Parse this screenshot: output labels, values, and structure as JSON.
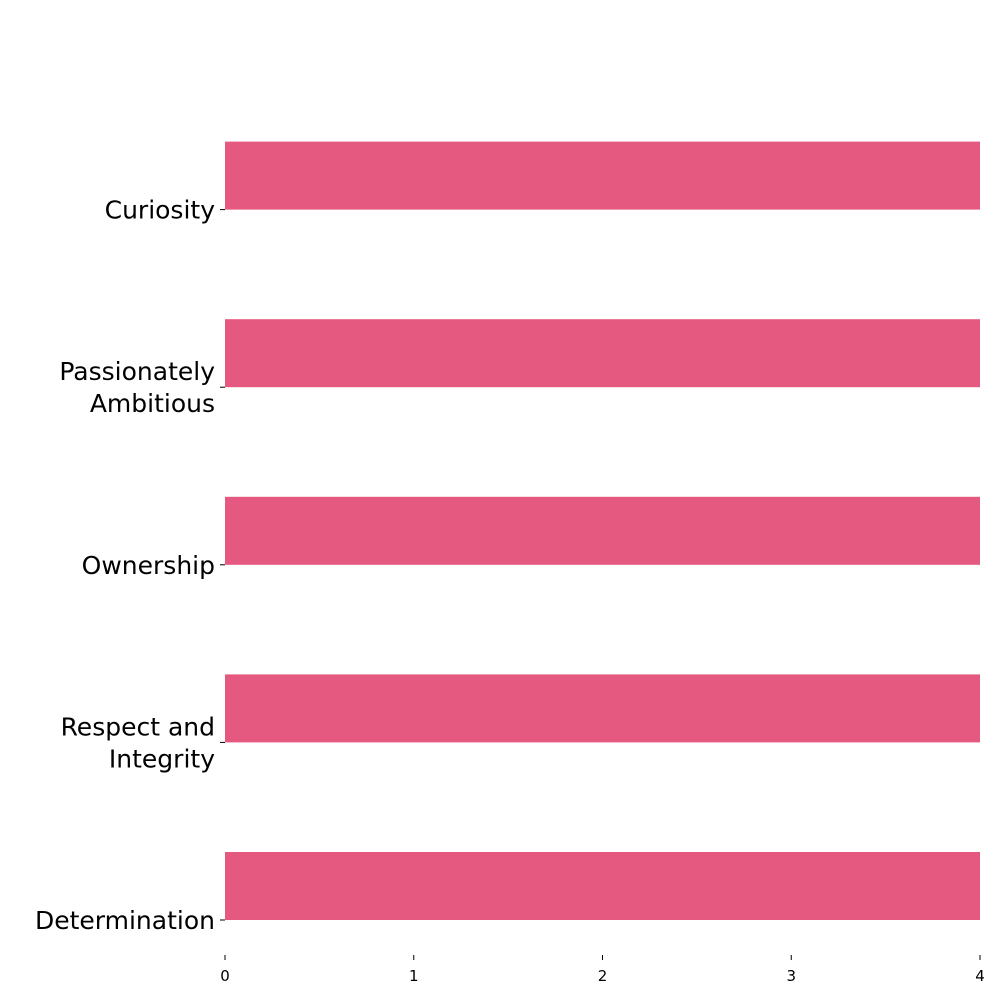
{
  "chart_data": {
    "type": "bar",
    "orientation": "horizontal",
    "categories": [
      [
        "Curiosity"
      ],
      [
        "Passionately",
        "Ambitious"
      ],
      [
        "Ownership"
      ],
      [
        "Respect and",
        "Integrity"
      ],
      [
        "Determination"
      ]
    ],
    "values": [
      4,
      4,
      4,
      4,
      4
    ],
    "xlim": [
      0,
      4
    ],
    "xticks": [
      0,
      1,
      2,
      3,
      4
    ],
    "bar_color": "#e5587f",
    "title": "",
    "xlabel": "",
    "ylabel": "",
    "grid": false,
    "legend": "none"
  }
}
